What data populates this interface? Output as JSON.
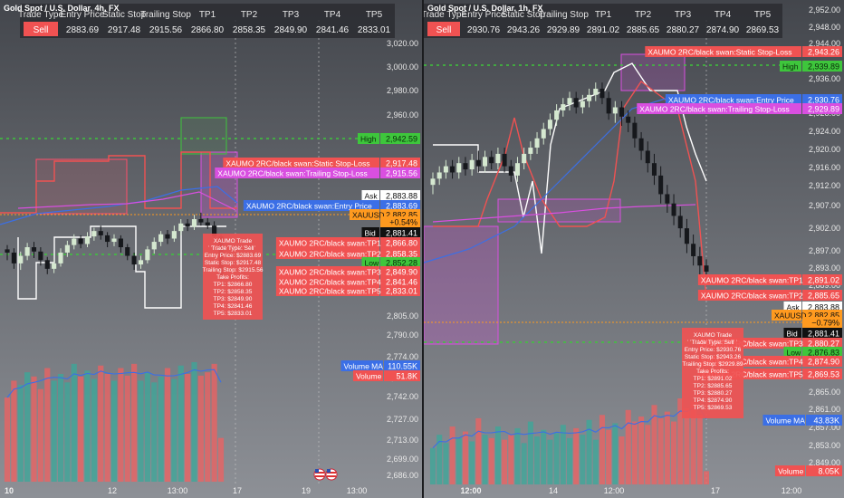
{
  "left": {
    "title": "Gold Spot / U.S. Dollar, 4h, FX",
    "table": {
      "headers": [
        "Trade Type",
        "Entry Price",
        "Static Stop",
        "Trailing Stop",
        "TP1",
        "TP2",
        "TP3",
        "TP4",
        "TP5"
      ],
      "values": [
        "Sell",
        "2883.69",
        "2917.48",
        "2915.56",
        "2866.80",
        "2858.35",
        "2849.90",
        "2841.46",
        "2833.01"
      ]
    },
    "y_ticks": [
      "3,020.00",
      "3,000.00",
      "2,980.00",
      "2,960.00",
      "2,940.00",
      "2,805.00",
      "2,790.00",
      "2,774.00",
      "2,758.00",
      "2,742.00",
      "2,727.00",
      "2,713.00",
      "2,699.00",
      "2,686.00"
    ],
    "x_ticks": [
      "10",
      "12",
      "13:00",
      "17",
      "19",
      "13:00"
    ],
    "levels": [
      {
        "label": "High",
        "value": "2,942.59",
        "bg": "#3ec63c",
        "fg": "#0a2a0a"
      },
      {
        "label": "XAUMO 2RC/black swan:Static Stop-Loss",
        "value": "2,917.48",
        "bg": "#f05252",
        "fg": "#ffffff"
      },
      {
        "label": "XAUMO 2RC/black swan:Trailing Stop-Loss",
        "value": "2,915.56",
        "bg": "#d94fe0",
        "fg": "#ffffff"
      },
      {
        "label": "Ask",
        "value": "2,883.88",
        "bg": "#ffffff",
        "fg": "#111111"
      },
      {
        "label": "XAUMO 2RC/black swan:Entry Price",
        "value": "2,883.69",
        "bg": "#3b6fe6",
        "fg": "#ffffff"
      },
      {
        "label": "XAUUSD",
        "value": "2,882.85",
        "bg": "#ff9a1f",
        "fg": "#111111"
      },
      {
        "label": "",
        "value": "+0.54%",
        "bg": "#ff9a1f",
        "fg": "#111111"
      },
      {
        "label": "Bid",
        "value": "2,881.41",
        "bg": "#111111",
        "fg": "#ffffff"
      },
      {
        "label": "XAUMO 2RC/black swan:TP1",
        "value": "2,866.80",
        "bg": "#f05252",
        "fg": "#ffffff"
      },
      {
        "label": "XAUMO 2RC/black swan:TP2",
        "value": "2,858.35",
        "bg": "#f05252",
        "fg": "#ffffff"
      },
      {
        "label": "Low",
        "value": "2,852.28",
        "bg": "#3ec63c",
        "fg": "#0a2a0a"
      },
      {
        "label": "XAUMO 2RC/black swan:TP3",
        "value": "2,849.90",
        "bg": "#f05252",
        "fg": "#ffffff"
      },
      {
        "label": "XAUMO 2RC/black swan:TP4",
        "value": "2,841.46",
        "bg": "#f05252",
        "fg": "#ffffff"
      },
      {
        "label": "XAUMO 2RC/black swan:TP5",
        "value": "2,833.01",
        "bg": "#f05252",
        "fg": "#ffffff"
      }
    ],
    "volume": [
      {
        "label": "Volume MA",
        "value": "110.55K",
        "bg": "#3b6fe6",
        "fg": "#ffffff"
      },
      {
        "label": "Volume",
        "value": "51.8K",
        "bg": "#f05252",
        "fg": "#ffffff"
      }
    ],
    "popup": [
      "XAUMO Trade",
      "Trade Type: Sell",
      "Entry Price: $2883.69",
      "Static Stop: $2917.48",
      "Trailing Stop: $2915.56",
      "Take Profits:",
      "TP1: $2866.80",
      "TP2: $2858.35",
      "TP3: $2849.90",
      "TP4: $2841.46",
      "TP5: $2833.01"
    ]
  },
  "right": {
    "title": "Gold Spot / U.S. Dollar, 1h, FX",
    "table": {
      "headers": [
        "Trade Type",
        "Entry Price",
        "Static Stop",
        "Trailing Stop",
        "TP1",
        "TP2",
        "TP3",
        "TP4",
        "TP5"
      ],
      "values": [
        "Sell",
        "2930.76",
        "2943.26",
        "2929.89",
        "2891.02",
        "2885.65",
        "2880.27",
        "2874.90",
        "2869.53"
      ]
    },
    "y_ticks": [
      "2,952.00",
      "2,948.00",
      "2,944.00",
      "2,936.00",
      "2,932.00",
      "2,928.00",
      "2,924.00",
      "2,920.00",
      "2,916.00",
      "2,912.00",
      "2,907.00",
      "2,902.00",
      "2,897.00",
      "2,893.00",
      "2,889.00",
      "2,865.00",
      "2,861.00",
      "2,857.00",
      "2,853.00",
      "2,849.00"
    ],
    "x_ticks": [
      "12:00",
      "14",
      "12:00",
      "17",
      "12:00"
    ],
    "levels": [
      {
        "label": "XAUMO 2RC/black swan:Static Stop-Loss",
        "value": "2,943.26",
        "bg": "#f05252",
        "fg": "#ffffff"
      },
      {
        "label": "High",
        "value": "2,939.89",
        "bg": "#3ec63c",
        "fg": "#0a2a0a"
      },
      {
        "label": "XAUMO 2RC/black swan:Entry Price",
        "value": "2,930.76",
        "bg": "#3b6fe6",
        "fg": "#ffffff"
      },
      {
        "label": "XAUMO 2RC/black swan:Trailing Stop-Loss",
        "value": "2,929.89",
        "bg": "#d94fe0",
        "fg": "#ffffff"
      },
      {
        "label": "XAUMO 2RC/black swan:TP1",
        "value": "2,891.02",
        "bg": "#f05252",
        "fg": "#ffffff"
      },
      {
        "label": "XAUMO 2RC/black swan:TP2",
        "value": "2,885.65",
        "bg": "#f05252",
        "fg": "#ffffff"
      },
      {
        "label": "Ask",
        "value": "2,883.88",
        "bg": "#ffffff",
        "fg": "#111111"
      },
      {
        "label": "XAUUSD",
        "value": "2,882.85",
        "bg": "#ff9a1f",
        "fg": "#111111"
      },
      {
        "label": "",
        "value": "−0.79%",
        "bg": "#ff9a1f",
        "fg": "#111111"
      },
      {
        "label": "Bid",
        "value": "2,881.41",
        "bg": "#111111",
        "fg": "#ffffff"
      },
      {
        "label": "XAUMO 2RC/black swan:TP3",
        "value": "2,880.27",
        "bg": "#f05252",
        "fg": "#ffffff"
      },
      {
        "label": "Low",
        "value": "2,876.83",
        "bg": "#3ec63c",
        "fg": "#0a2a0a"
      },
      {
        "label": "XAUMO 2RC/black swan:TP4",
        "value": "2,874.90",
        "bg": "#f05252",
        "fg": "#ffffff"
      },
      {
        "label": "XAUMO 2RC/black swan:TP5",
        "value": "2,869.53",
        "bg": "#f05252",
        "fg": "#ffffff"
      }
    ],
    "volume": [
      {
        "label": "Volume MA",
        "value": "43.83K",
        "bg": "#3b6fe6",
        "fg": "#ffffff"
      },
      {
        "label": "Volume",
        "value": "8.05K",
        "bg": "#f05252",
        "fg": "#ffffff"
      }
    ],
    "popup": [
      "XAUMO Trade",
      "Trade Type: Sell",
      "Entry Price: $2930.76",
      "Static Stop: $2943.26",
      "Trailing Stop: $2929.89",
      "Take Profits:",
      "TP1: $2891.02",
      "TP2: $2885.65",
      "TP3: $2880.27",
      "TP4: $2874.90",
      "TP5: $2869.53"
    ]
  },
  "colors": {
    "bull": "#d5e8d0",
    "bear": "#16181c",
    "sell": "#f05252",
    "green": "#3ec63c",
    "magenta": "#d94fe0",
    "blue": "#3b6fe6",
    "orange": "#ff9a1f",
    "vol_bull": "#3aa89a",
    "vol_bear": "#f06060"
  },
  "chart_data": [
    {
      "type": "candlestick",
      "title": "Gold Spot / U.S. Dollar, 4h, FX",
      "ylim": [
        2686,
        3030
      ],
      "candles": [
        [
          2908,
          2905,
          2912,
          2898
        ],
        [
          2905,
          2895,
          2909,
          2890
        ],
        [
          2895,
          2902,
          2906,
          2889
        ],
        [
          2902,
          2910,
          2914,
          2898
        ],
        [
          2910,
          2906,
          2915,
          2900
        ],
        [
          2906,
          2898,
          2910,
          2893
        ],
        [
          2898,
          2890,
          2901,
          2885
        ],
        [
          2890,
          2895,
          2899,
          2886
        ],
        [
          2895,
          2905,
          2909,
          2892
        ],
        [
          2905,
          2912,
          2916,
          2901
        ],
        [
          2912,
          2918,
          2922,
          2908
        ],
        [
          2918,
          2913,
          2921,
          2909
        ],
        [
          2913,
          2920,
          2924,
          2910
        ],
        [
          2920,
          2925,
          2928,
          2916
        ],
        [
          2925,
          2921,
          2930,
          2917
        ],
        [
          2921,
          2915,
          2924,
          2910
        ],
        [
          2915,
          2918,
          2922,
          2911
        ],
        [
          2918,
          2910,
          2921,
          2905
        ],
        [
          2910,
          2902,
          2913,
          2898
        ],
        [
          2902,
          2894,
          2905,
          2889
        ],
        [
          2894,
          2898,
          2902,
          2890
        ],
        [
          2898,
          2908,
          2911,
          2895
        ],
        [
          2908,
          2915,
          2919,
          2904
        ],
        [
          2915,
          2922,
          2925,
          2911
        ],
        [
          2922,
          2918,
          2926,
          2913
        ],
        [
          2918,
          2925,
          2930,
          2915
        ],
        [
          2925,
          2932,
          2936,
          2921
        ],
        [
          2932,
          2929,
          2936,
          2925
        ],
        [
          2929,
          2936,
          2940,
          2926
        ],
        [
          2936,
          2933,
          2942,
          2930
        ],
        [
          2933,
          2930,
          2937,
          2927
        ],
        [
          2930,
          2920,
          2934,
          2916
        ],
        [
          2920,
          2884,
          2922,
          2880
        ]
      ],
      "volume": [
        100,
        120,
        115,
        130,
        125,
        110,
        135,
        120,
        128,
        118,
        140,
        125,
        132,
        122,
        138,
        128,
        120,
        135,
        126,
        140,
        120,
        130,
        118,
        125,
        135,
        122,
        138,
        128,
        142,
        126,
        130,
        140,
        52
      ]
    },
    {
      "type": "candlestick",
      "title": "Gold Spot / U.S. Dollar, 1h, FX",
      "ylim": [
        2846,
        2954
      ],
      "candles": [
        [
          2909,
          2911,
          2913,
          2906
        ],
        [
          2911,
          2913,
          2915,
          2909
        ],
        [
          2913,
          2915,
          2917,
          2911
        ],
        [
          2915,
          2913,
          2917,
          2911
        ],
        [
          2913,
          2916,
          2918,
          2911
        ],
        [
          2916,
          2914,
          2918,
          2912
        ],
        [
          2914,
          2917,
          2919,
          2912
        ],
        [
          2917,
          2915,
          2920,
          2913
        ],
        [
          2915,
          2918,
          2920,
          2913
        ],
        [
          2918,
          2916,
          2920,
          2914
        ],
        [
          2916,
          2919,
          2921,
          2914
        ],
        [
          2919,
          2915,
          2921,
          2913
        ],
        [
          2915,
          2912,
          2917,
          2910
        ],
        [
          2912,
          2916,
          2918,
          2910
        ],
        [
          2916,
          2919,
          2921,
          2914
        ],
        [
          2919,
          2921,
          2923,
          2917
        ],
        [
          2921,
          2924,
          2926,
          2919
        ],
        [
          2924,
          2927,
          2929,
          2922
        ],
        [
          2927,
          2930,
          2932,
          2925
        ],
        [
          2930,
          2933,
          2935,
          2928
        ],
        [
          2933,
          2935,
          2937,
          2931
        ],
        [
          2935,
          2937,
          2939,
          2933
        ],
        [
          2937,
          2934,
          2939,
          2932
        ],
        [
          2934,
          2936,
          2938,
          2932
        ],
        [
          2936,
          2938,
          2940,
          2934
        ],
        [
          2938,
          2940,
          2942,
          2936
        ],
        [
          2940,
          2937,
          2942,
          2935
        ],
        [
          2937,
          2932,
          2939,
          2930
        ],
        [
          2932,
          2934,
          2936,
          2929
        ],
        [
          2934,
          2931,
          2936,
          2928
        ],
        [
          2931,
          2929,
          2933,
          2926
        ],
        [
          2929,
          2924,
          2931,
          2921
        ],
        [
          2924,
          2920,
          2926,
          2917
        ],
        [
          2920,
          2916,
          2923,
          2913
        ],
        [
          2916,
          2912,
          2919,
          2909
        ],
        [
          2912,
          2906,
          2915,
          2903
        ],
        [
          2906,
          2903,
          2909,
          2900
        ],
        [
          2903,
          2899,
          2906,
          2896
        ],
        [
          2899,
          2895,
          2902,
          2892
        ],
        [
          2895,
          2890,
          2898,
          2887
        ],
        [
          2890,
          2886,
          2893,
          2883
        ],
        [
          2886,
          2883,
          2889,
          2880
        ],
        [
          2883,
          2881,
          2885,
          2879
        ]
      ],
      "volume": [
        22,
        30,
        25,
        35,
        28,
        32,
        26,
        40,
        30,
        28,
        35,
        27,
        30,
        34,
        25,
        38,
        29,
        33,
        27,
        31,
        36,
        28,
        34,
        30,
        39,
        27,
        42,
        33,
        37,
        29,
        45,
        38,
        41,
        36,
        48,
        40,
        44,
        38,
        52,
        46,
        50,
        42,
        8
      ]
    }
  ]
}
